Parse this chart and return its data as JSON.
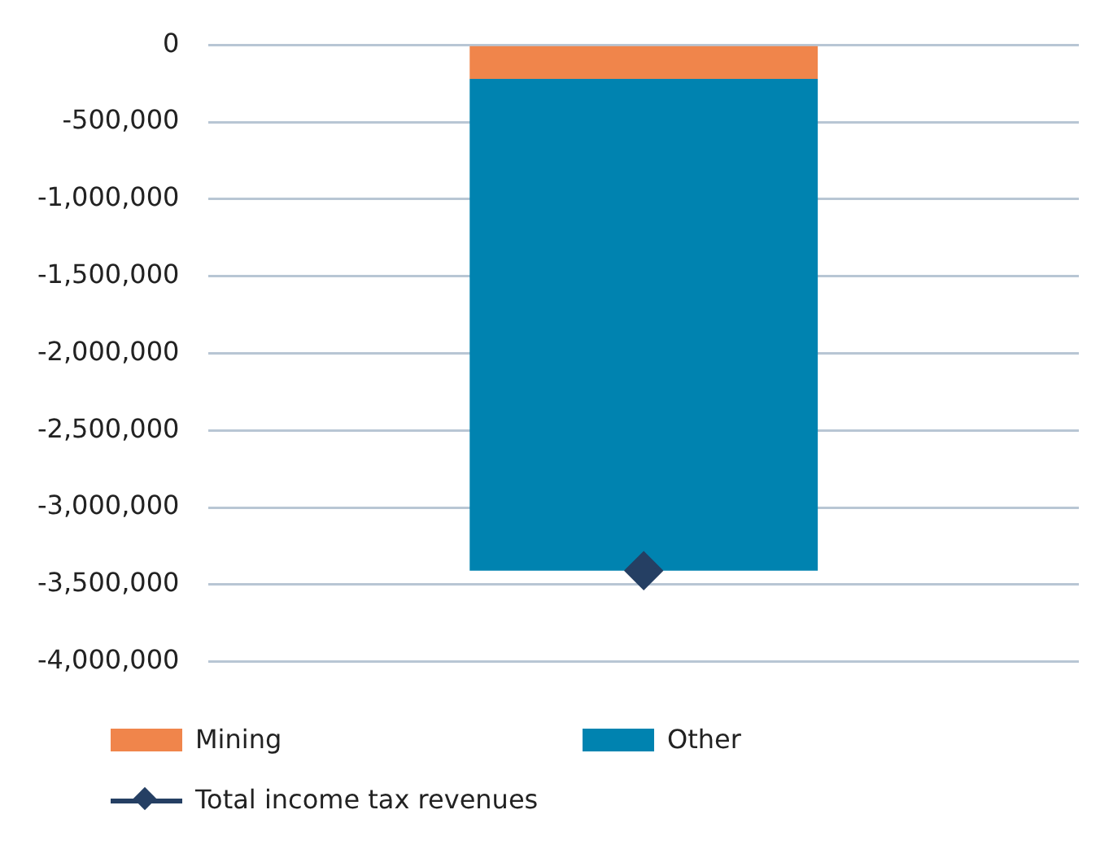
{
  "chart_data": {
    "type": "bar",
    "stacked": true,
    "categories": [
      null
    ],
    "series": [
      {
        "name": "Mining",
        "color": "#f0854b",
        "values": [
          -220000
        ]
      },
      {
        "name": "Other",
        "color": "#0083b0",
        "values": [
          -3190000
        ]
      },
      {
        "name": "Total income tax revenues",
        "type": "line",
        "color": "#253f63",
        "marker": "diamond",
        "values": [
          -3410000
        ]
      }
    ],
    "ylim": [
      -4000000,
      0
    ],
    "yticks": [
      {
        "value": -4000000,
        "label": "-4,000,000"
      },
      {
        "value": -3500000,
        "label": "-3,500,000"
      },
      {
        "value": -3000000,
        "label": "-3,000,000"
      },
      {
        "value": -2500000,
        "label": "-2,500,000"
      },
      {
        "value": -2000000,
        "label": "-2,000,000"
      },
      {
        "value": -1500000,
        "label": "-1,500,000"
      },
      {
        "value": -1000000,
        "label": "-1,000,000"
      },
      {
        "value": -500000,
        "label": "-500,000"
      },
      0
    ],
    "grid": "y",
    "legend": "bottom"
  }
}
